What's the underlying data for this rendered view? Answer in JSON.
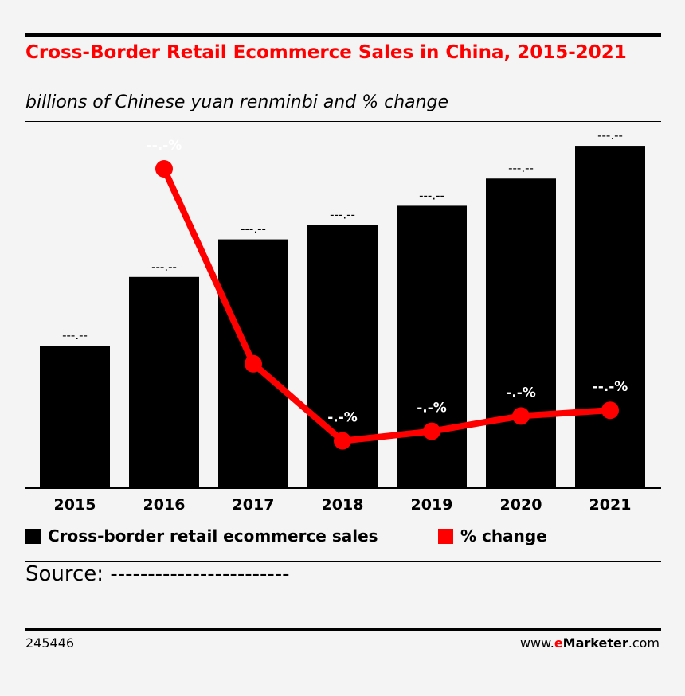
{
  "title": "Cross-Border Retail Ecommerce Sales in China, 2015-2021",
  "subtitle": "billions of Chinese yuan renminbi and % change",
  "colors": {
    "bars": "#000000",
    "line": "#ff0000",
    "title": "#ff0000",
    "background": "#f4f4f4"
  },
  "chart_data": {
    "type": "bar",
    "categories": [
      "2015",
      "2016",
      "2017",
      "2018",
      "2019",
      "2020",
      "2021"
    ],
    "bar_labels": [
      "---.--",
      "---.--",
      "---.--",
      "---.--",
      "---.--",
      "---.--",
      "---.--"
    ],
    "line_labels": [
      "",
      "--.-%",
      "--.-%",
      "-.-%",
      "-.-%",
      "-.-%",
      "--.-%"
    ],
    "series": [
      {
        "name": "Cross-border retail ecommerce sales",
        "type": "bar",
        "values": [
          177,
          263,
          310,
          328,
          352,
          386,
          427
        ]
      },
      {
        "name": "% change",
        "type": "line",
        "values": [
          null,
          48.5,
          17.9,
          5.8,
          7.3,
          9.7,
          10.6
        ]
      }
    ],
    "ylim_bar": [
      0,
      440
    ],
    "ylim_line": [
      0,
      100
    ],
    "grid": false,
    "legend_position": "bottom-left"
  },
  "legend": {
    "bars_label": "Cross-border retail ecommerce sales",
    "line_label": "% change"
  },
  "source": "Source: ------------------------",
  "footer": {
    "id": "245446",
    "site_prefix": "www.",
    "site_brand_e": "e",
    "site_brand_rest": "Marketer",
    "site_suffix": ".com"
  }
}
